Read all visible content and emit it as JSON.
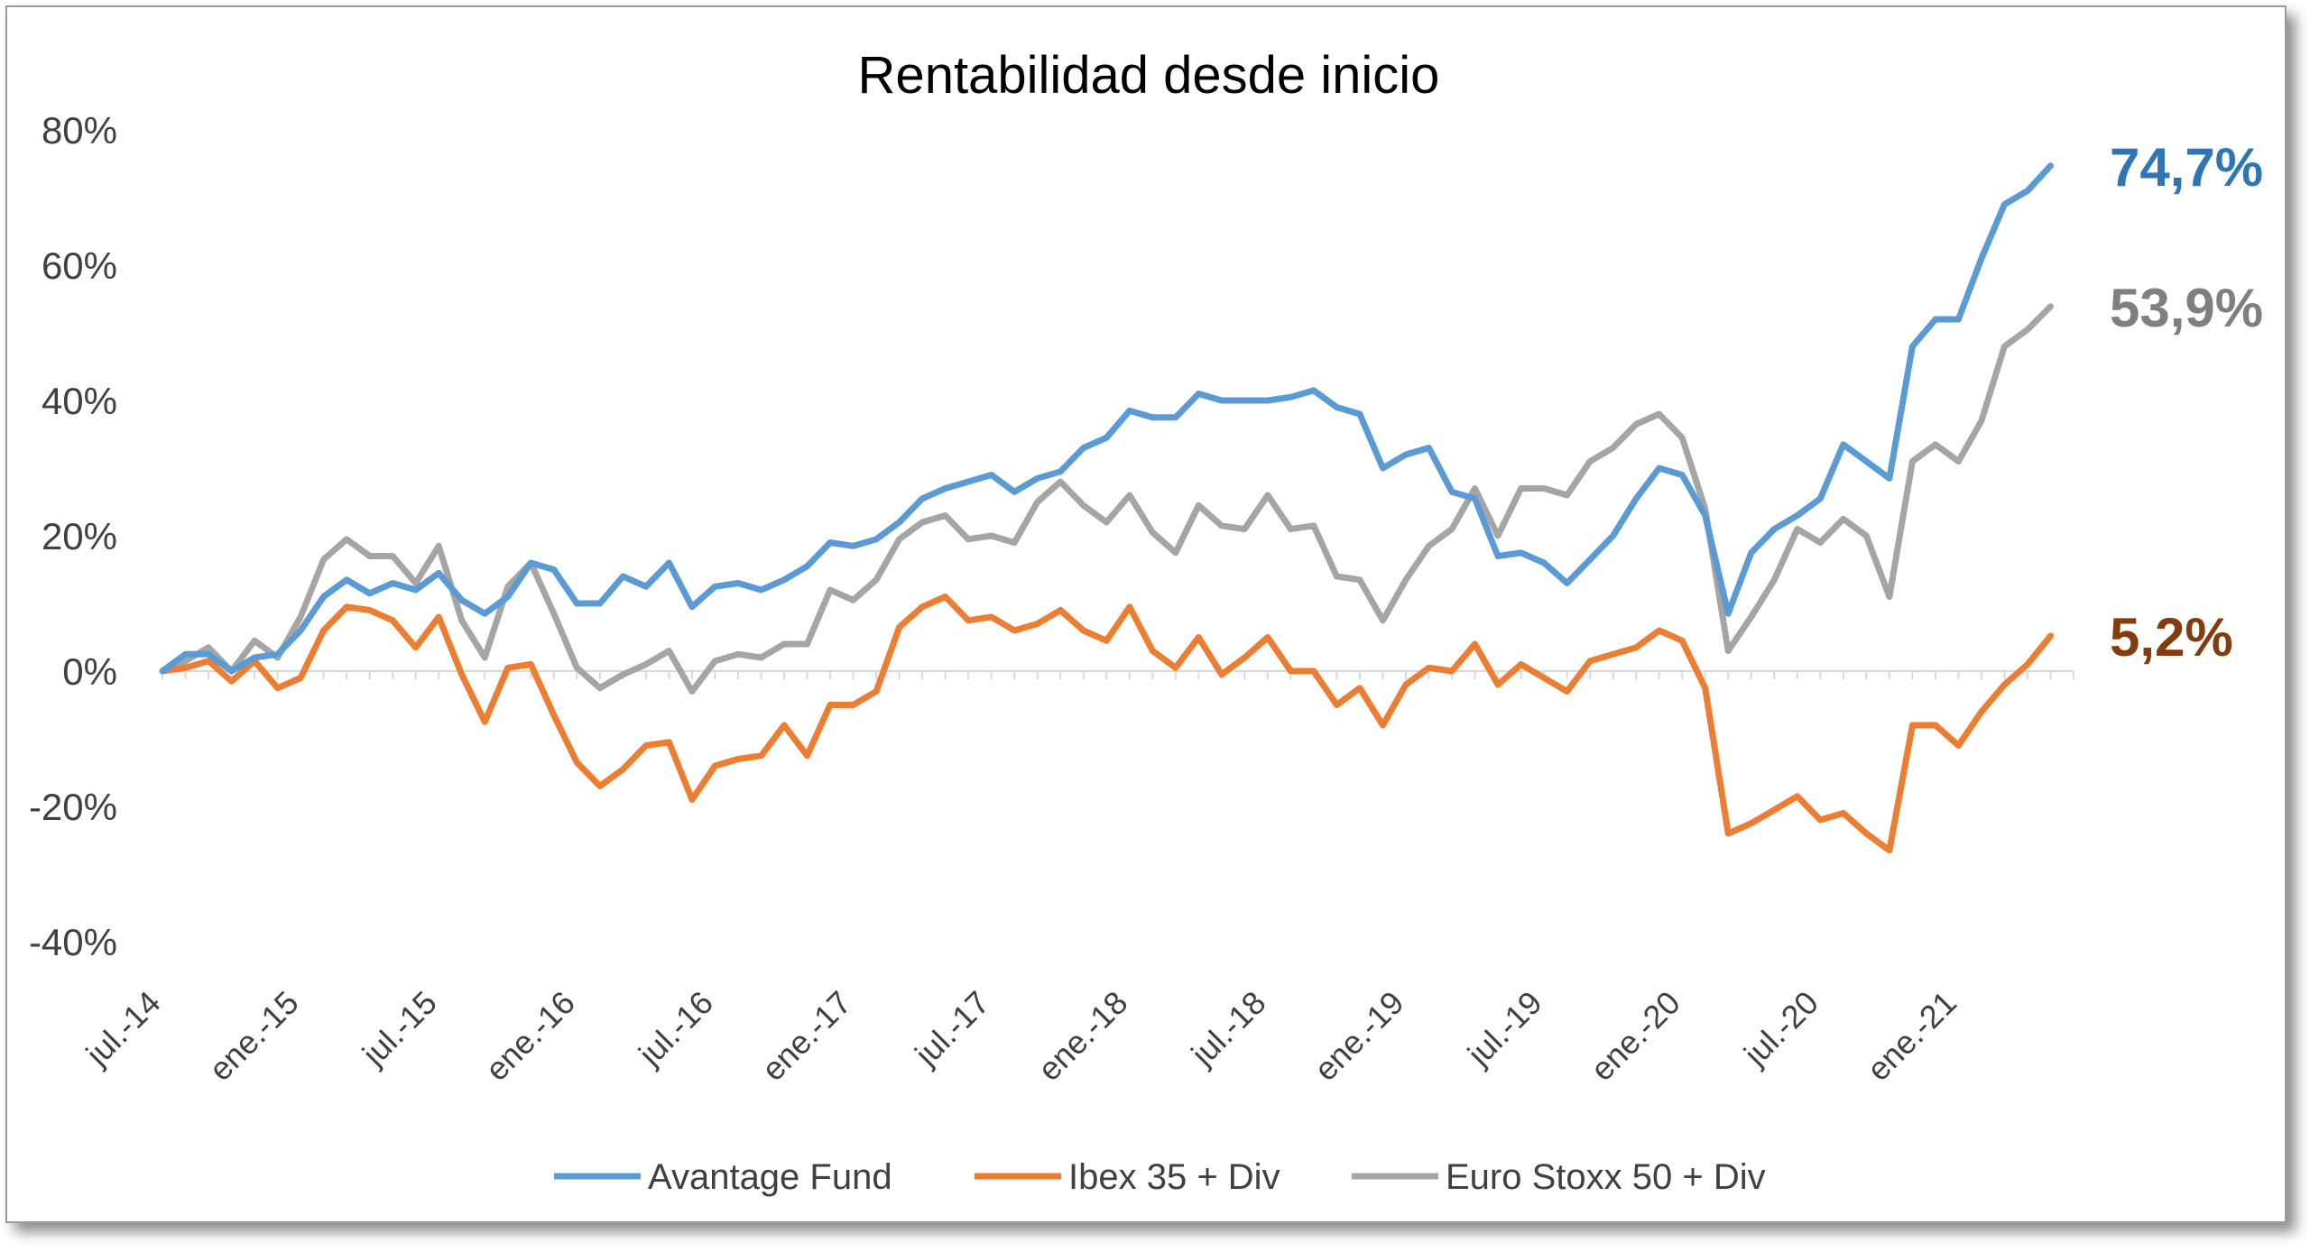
{
  "chart_data": {
    "type": "line",
    "title": "Rentabilidad desde inicio",
    "ylim": [
      -40,
      80
    ],
    "yticks": [
      80,
      60,
      40,
      20,
      0,
      -20,
      -40
    ],
    "ytick_labels": [
      "80%",
      "60%",
      "40%",
      "20%",
      "0%",
      "-20%",
      "-40%"
    ],
    "xticks": [
      0,
      6,
      12,
      18,
      24,
      30,
      36,
      42,
      48,
      54,
      60,
      66,
      72,
      78
    ],
    "xtick_labels": [
      "jul.-14",
      "ene.-15",
      "jul.-15",
      "ene.-16",
      "jul.-16",
      "ene.-17",
      "jul.-17",
      "ene.-18",
      "jul.-18",
      "ene.-19",
      "jul.-19",
      "ene.-20",
      "jul.-20",
      "ene.-21"
    ],
    "x_range": [
      0,
      83
    ],
    "legend_position": "bottom",
    "series": [
      {
        "name": "Avantage Fund",
        "color": "#5b9bd5",
        "end_label": "74,7%",
        "end_label_color": "#2f75b6",
        "values": [
          0,
          2.5,
          2.5,
          0,
          2,
          2.5,
          6,
          11,
          13.5,
          11.5,
          13,
          12,
          14.5,
          10.5,
          8.5,
          11,
          16,
          15,
          10,
          10,
          14,
          12.5,
          16,
          9.5,
          12.5,
          13,
          12,
          13.5,
          15.5,
          19,
          18.5,
          19.5,
          22,
          25.5,
          27,
          28,
          29,
          26.5,
          28.5,
          29.5,
          33,
          34.5,
          38.5,
          37.5,
          37.5,
          41,
          40,
          40,
          40,
          40.5,
          41.5,
          39,
          38,
          30,
          32,
          33,
          26.5,
          25.5,
          17,
          17.5,
          16,
          13,
          16.5,
          20,
          25.5,
          30,
          29,
          23,
          8.5,
          17.5,
          21,
          23,
          25.5,
          33.5,
          31,
          28.5,
          48,
          52,
          52,
          61,
          69,
          71,
          74.7
        ]
      },
      {
        "name": "Ibex 35 + Div",
        "color": "#ed7d31",
        "end_label": "5,2%",
        "end_label_color": "#843c0c",
        "values": [
          0,
          0.5,
          1.5,
          -1.5,
          1.5,
          -2.5,
          -1,
          6,
          9.5,
          9,
          7.5,
          3.5,
          8,
          -0.5,
          -7.5,
          0.5,
          1,
          -6.5,
          -13.5,
          -17,
          -14.5,
          -11,
          -10.5,
          -19,
          -14,
          -13,
          -12.5,
          -8,
          -12.5,
          -5,
          -5,
          -3,
          6.5,
          9.5,
          11,
          7.5,
          8,
          6,
          7,
          9,
          6,
          4.5,
          9.5,
          3,
          0.5,
          5,
          -0.5,
          2,
          5,
          0,
          0,
          -5,
          -2.5,
          -8,
          -2,
          0.5,
          0,
          4,
          -2,
          1,
          -1,
          -3,
          1.5,
          2.5,
          3.5,
          6,
          4.5,
          -2.5,
          -24,
          -22.5,
          -20.5,
          -18.5,
          -22,
          -21,
          -24,
          -26.5,
          -8,
          -8,
          -11,
          -6,
          -2,
          1,
          5.2
        ]
      },
      {
        "name": "Euro Stoxx 50 + Div",
        "color": "#a5a5a5",
        "end_label": "53,9%",
        "end_label_color": "#7f7f7f",
        "values": [
          0,
          1.5,
          3.5,
          0,
          4.5,
          2,
          8,
          16.5,
          19.5,
          17,
          17,
          13,
          18.5,
          7.5,
          2,
          12.5,
          16,
          8.5,
          0.5,
          -2.5,
          -0.5,
          1,
          3,
          -3,
          1.5,
          2.5,
          2,
          4,
          4,
          12,
          10.5,
          13.5,
          19.5,
          22,
          23,
          19.5,
          20,
          19,
          25,
          28,
          24.5,
          22,
          26,
          20.5,
          17.5,
          24.5,
          21.5,
          21,
          26,
          21,
          21.5,
          14,
          13.5,
          7.5,
          13.5,
          18.5,
          21,
          27,
          20,
          27,
          27,
          26,
          31,
          33,
          36.5,
          38,
          34.5,
          24,
          3,
          8,
          13.5,
          21,
          19,
          22.5,
          20,
          11,
          31,
          33.5,
          31,
          37,
          48,
          50.5,
          53.9
        ]
      }
    ]
  }
}
